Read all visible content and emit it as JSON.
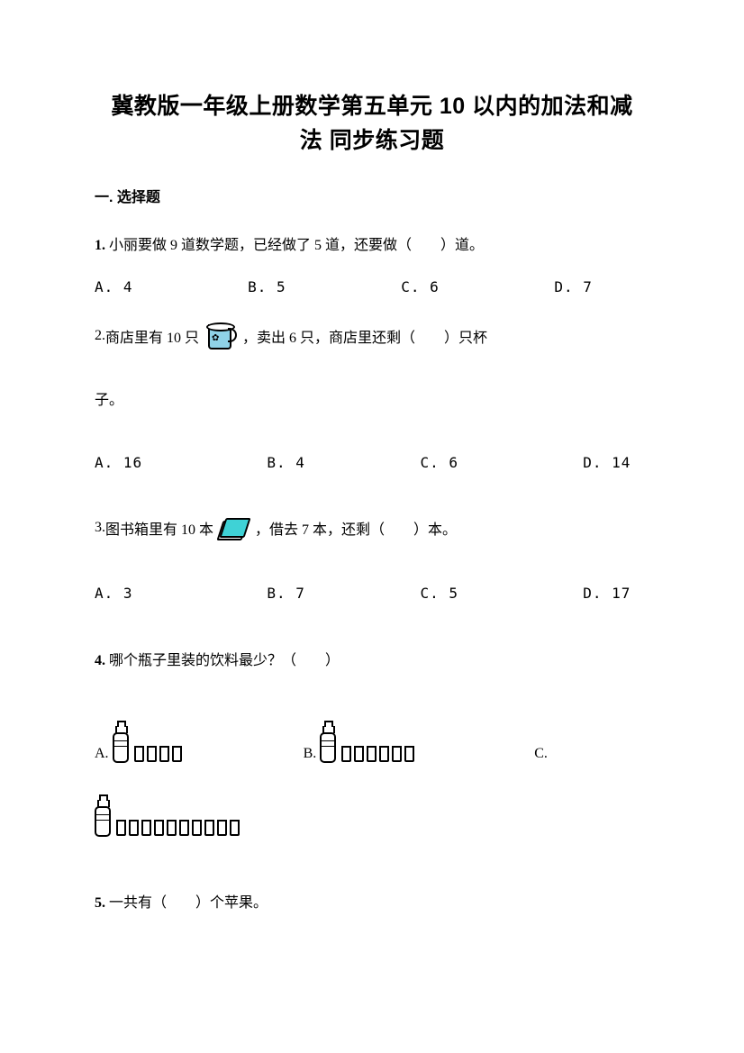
{
  "title_line1": "冀教版一年级上册数学第五单元 10 以内的加法和减",
  "title_line2": "法 同步练习题",
  "section1": "一. 选择题",
  "q1": {
    "num": "1.",
    "text": " 小丽要做 9 道数学题，已经做了 5 道，还要做（　　）道。",
    "opts": "A. 4            B. 5            C. 6            D. 7"
  },
  "q2": {
    "num": "2.",
    "pre_icon": " 商店里有 10 只 ",
    "post_icon": " ，卖出 6 只，商店里还剩（　　）只杯",
    "line2": "子。",
    "opts": "A. 16             B. 4            C. 6             D. 14",
    "icon_body_color": "#8fd2e7"
  },
  "q3": {
    "num": "3.",
    "pre_icon": " 图书箱里有 10 本 ",
    "post_icon": " ，借去 7 本，还剩（　　）本。",
    "opts": "A. 3              B. 7            C. 5             D. 17",
    "icon_color": "#3fd2d6"
  },
  "q4": {
    "num": "4.",
    "text": " 哪个瓶子里装的饮料最少？（　　）",
    "A": {
      "letter": "A.",
      "glasses": 4
    },
    "B": {
      "letter": "B.",
      "glasses": 6
    },
    "C": {
      "letter": "C.",
      "glasses": 10
    }
  },
  "q5": {
    "num": "5.",
    "text": " 一共有（　　）个苹果。"
  }
}
